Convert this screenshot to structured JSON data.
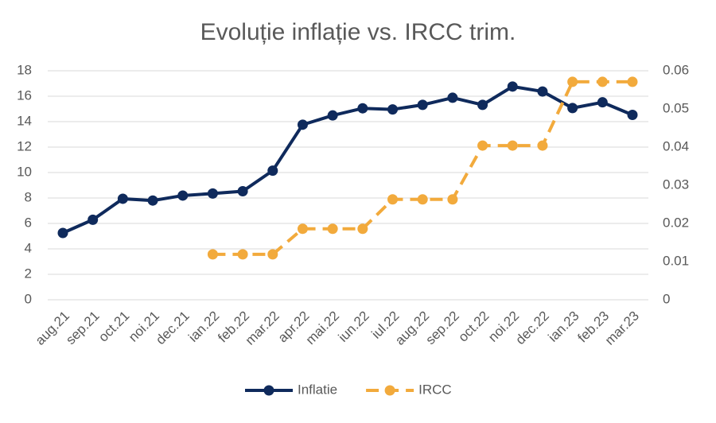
{
  "chart_data": {
    "type": "line",
    "title": "Evoluție inflație vs. IRCC trim.",
    "categories": [
      "aug.21",
      "sep.21",
      "oct.21",
      "noi.21",
      "dec.21",
      "ian.22",
      "feb.22",
      "mar.22",
      "apr.22",
      "mai.22",
      "iun.22",
      "iul.22",
      "aug.22",
      "sep.22",
      "oct.22",
      "noi.22",
      "dec.22",
      "ian.23",
      "feb.23",
      "mar.23"
    ],
    "series": [
      {
        "name": "Inflatie",
        "color": "#0f2a5c",
        "dashed": false,
        "values": [
          5.25,
          6.29,
          7.94,
          7.8,
          8.19,
          8.35,
          8.53,
          10.15,
          13.76,
          14.49,
          15.05,
          14.96,
          15.32,
          15.88,
          15.32,
          16.76,
          16.37,
          15.07,
          15.52,
          14.53
        ]
      },
      {
        "name": "IRCC",
        "color": "#f2aa3c",
        "axis": "y2",
        "dashed": true,
        "values": [
          null,
          null,
          null,
          null,
          null,
          0.0119,
          0.0119,
          0.0119,
          0.0186,
          0.0186,
          0.0186,
          0.0263,
          0.0263,
          0.0263,
          0.0404,
          0.0404,
          0.0404,
          0.0571,
          0.0571,
          0.0571
        ]
      }
    ],
    "ylim": [
      0,
      18
    ],
    "yticks": [
      0,
      2,
      4,
      6,
      8,
      10,
      12,
      14,
      16,
      18
    ],
    "y2lim": [
      0,
      0.06
    ],
    "y2ticks": [
      0,
      0.01,
      0.02,
      0.03,
      0.04,
      0.05,
      0.06
    ],
    "grid": true,
    "legend": "bottom"
  }
}
